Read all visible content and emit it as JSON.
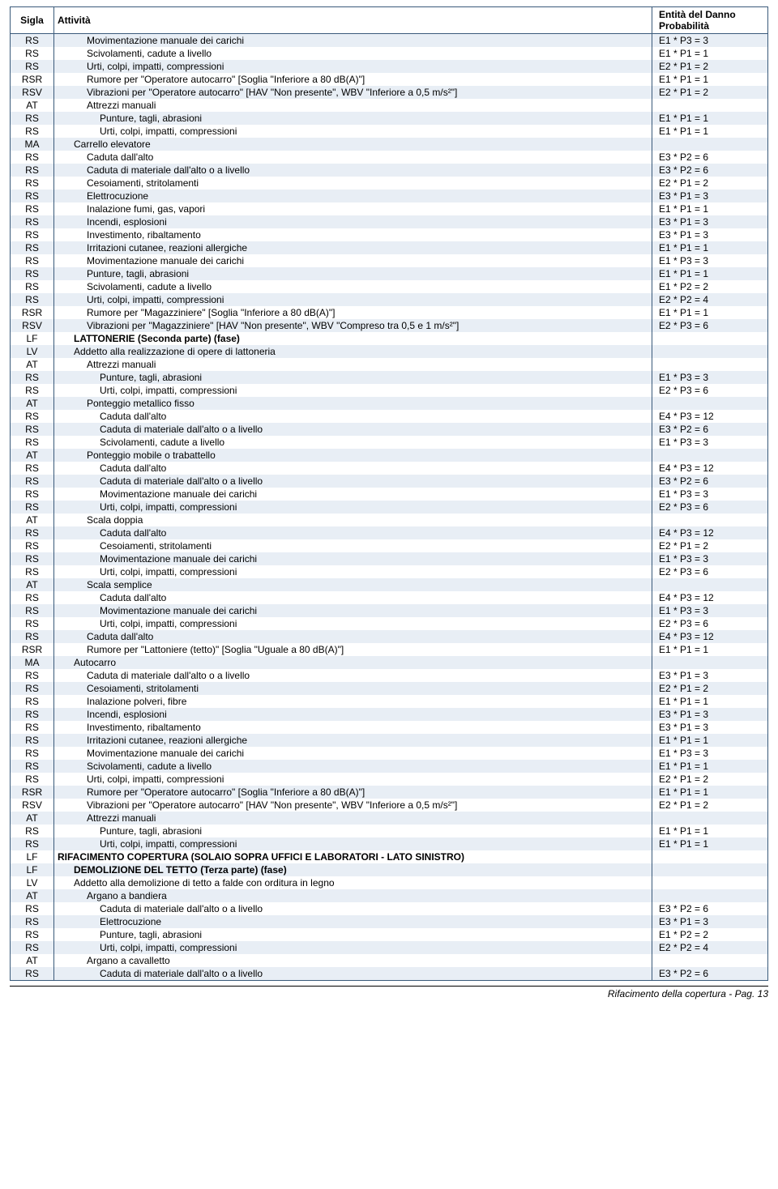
{
  "headers": {
    "sigla": "Sigla",
    "attivita": "Attività",
    "entita": "Entità del Danno\nProbabilità"
  },
  "footer": "Rifacimento della copertura - Pag. 13",
  "rows": [
    {
      "s": "RS",
      "a": "Movimentazione manuale dei carichi",
      "e": "E1 * P3 = 3",
      "i": 2
    },
    {
      "s": "RS",
      "a": "Scivolamenti, cadute a livello",
      "e": "E1 * P1 = 1",
      "i": 2
    },
    {
      "s": "RS",
      "a": "Urti, colpi, impatti, compressioni",
      "e": "E2 * P1 = 2",
      "i": 2
    },
    {
      "s": "RSR",
      "a": "Rumore per \"Operatore autocarro\" [Soglia \"Inferiore a 80 dB(A)\"]",
      "e": "E1 * P1 = 1",
      "i": 2
    },
    {
      "s": "RSV",
      "a": "Vibrazioni per \"Operatore autocarro\" [HAV \"Non presente\", WBV \"Inferiore a 0,5 m/s²\"]",
      "e": "E2 * P1 = 2",
      "i": 2
    },
    {
      "s": "AT",
      "a": "Attrezzi manuali",
      "e": "",
      "i": 2
    },
    {
      "s": "RS",
      "a": "Punture, tagli, abrasioni",
      "e": "E1 * P1 = 1",
      "i": 3
    },
    {
      "s": "RS",
      "a": "Urti, colpi, impatti, compressioni",
      "e": "E1 * P1 = 1",
      "i": 3
    },
    {
      "s": "MA",
      "a": "Carrello elevatore",
      "e": "",
      "i": 1
    },
    {
      "s": "RS",
      "a": "Caduta dall'alto",
      "e": "E3 * P2 = 6",
      "i": 2
    },
    {
      "s": "RS",
      "a": "Caduta di materiale dall'alto o a livello",
      "e": "E3 * P2 = 6",
      "i": 2
    },
    {
      "s": "RS",
      "a": "Cesoiamenti, stritolamenti",
      "e": "E2 * P1 = 2",
      "i": 2
    },
    {
      "s": "RS",
      "a": "Elettrocuzione",
      "e": "E3 * P1 = 3",
      "i": 2
    },
    {
      "s": "RS",
      "a": "Inalazione fumi, gas, vapori",
      "e": "E1 * P1 = 1",
      "i": 2
    },
    {
      "s": "RS",
      "a": "Incendi, esplosioni",
      "e": "E3 * P1 = 3",
      "i": 2
    },
    {
      "s": "RS",
      "a": "Investimento, ribaltamento",
      "e": "E3 * P1 = 3",
      "i": 2
    },
    {
      "s": "RS",
      "a": "Irritazioni cutanee, reazioni allergiche",
      "e": "E1 * P1 = 1",
      "i": 2
    },
    {
      "s": "RS",
      "a": "Movimentazione manuale dei carichi",
      "e": "E1 * P3 = 3",
      "i": 2
    },
    {
      "s": "RS",
      "a": "Punture, tagli, abrasioni",
      "e": "E1 * P1 = 1",
      "i": 2
    },
    {
      "s": "RS",
      "a": "Scivolamenti, cadute a livello",
      "e": "E1 * P2 = 2",
      "i": 2
    },
    {
      "s": "RS",
      "a": "Urti, colpi, impatti, compressioni",
      "e": "E2 * P2 = 4",
      "i": 2
    },
    {
      "s": "RSR",
      "a": "Rumore per \"Magazziniere\" [Soglia \"Inferiore a 80 dB(A)\"]",
      "e": "E1 * P1 = 1",
      "i": 2
    },
    {
      "s": "RSV",
      "a": "Vibrazioni per \"Magazziniere\" [HAV \"Non presente\", WBV \"Compreso tra 0,5 e 1 m/s²\"]",
      "e": "E2 * P3 = 6",
      "i": 2
    },
    {
      "s": "LF",
      "a": "LATTONERIE (Seconda parte) (fase)",
      "e": "",
      "i": 1,
      "b": true
    },
    {
      "s": "LV",
      "a": "Addetto alla realizzazione di opere di lattoneria",
      "e": "",
      "i": 1
    },
    {
      "s": "AT",
      "a": "Attrezzi manuali",
      "e": "",
      "i": 2
    },
    {
      "s": "RS",
      "a": "Punture, tagli, abrasioni",
      "e": "E1 * P3 = 3",
      "i": 3
    },
    {
      "s": "RS",
      "a": "Urti, colpi, impatti, compressioni",
      "e": "E2 * P3 = 6",
      "i": 3
    },
    {
      "s": "AT",
      "a": "Ponteggio metallico fisso",
      "e": "",
      "i": 2
    },
    {
      "s": "RS",
      "a": "Caduta dall'alto",
      "e": "E4 * P3 = 12",
      "i": 3
    },
    {
      "s": "RS",
      "a": "Caduta di materiale dall'alto o a livello",
      "e": "E3 * P2 = 6",
      "i": 3
    },
    {
      "s": "RS",
      "a": "Scivolamenti, cadute a livello",
      "e": "E1 * P3 = 3",
      "i": 3
    },
    {
      "s": "AT",
      "a": "Ponteggio mobile o trabattello",
      "e": "",
      "i": 2
    },
    {
      "s": "RS",
      "a": "Caduta dall'alto",
      "e": "E4 * P3 = 12",
      "i": 3
    },
    {
      "s": "RS",
      "a": "Caduta di materiale dall'alto o a livello",
      "e": "E3 * P2 = 6",
      "i": 3
    },
    {
      "s": "RS",
      "a": "Movimentazione manuale dei carichi",
      "e": "E1 * P3 = 3",
      "i": 3
    },
    {
      "s": "RS",
      "a": "Urti, colpi, impatti, compressioni",
      "e": "E2 * P3 = 6",
      "i": 3
    },
    {
      "s": "AT",
      "a": "Scala doppia",
      "e": "",
      "i": 2
    },
    {
      "s": "RS",
      "a": "Caduta dall'alto",
      "e": "E4 * P3 = 12",
      "i": 3
    },
    {
      "s": "RS",
      "a": "Cesoiamenti, stritolamenti",
      "e": "E2 * P1 = 2",
      "i": 3
    },
    {
      "s": "RS",
      "a": "Movimentazione manuale dei carichi",
      "e": "E1 * P3 = 3",
      "i": 3
    },
    {
      "s": "RS",
      "a": "Urti, colpi, impatti, compressioni",
      "e": "E2 * P3 = 6",
      "i": 3
    },
    {
      "s": "AT",
      "a": "Scala semplice",
      "e": "",
      "i": 2
    },
    {
      "s": "RS",
      "a": "Caduta dall'alto",
      "e": "E4 * P3 = 12",
      "i": 3
    },
    {
      "s": "RS",
      "a": "Movimentazione manuale dei carichi",
      "e": "E1 * P3 = 3",
      "i": 3
    },
    {
      "s": "RS",
      "a": "Urti, colpi, impatti, compressioni",
      "e": "E2 * P3 = 6",
      "i": 3
    },
    {
      "s": "RS",
      "a": "Caduta dall'alto",
      "e": "E4 * P3 = 12",
      "i": 2
    },
    {
      "s": "RSR",
      "a": "Rumore per \"Lattoniere (tetto)\" [Soglia \"Uguale a 80 dB(A)\"]",
      "e": "E1 * P1 = 1",
      "i": 2
    },
    {
      "s": "MA",
      "a": "Autocarro",
      "e": "",
      "i": 1
    },
    {
      "s": "RS",
      "a": "Caduta di materiale dall'alto o a livello",
      "e": "E3 * P1 = 3",
      "i": 2
    },
    {
      "s": "RS",
      "a": "Cesoiamenti, stritolamenti",
      "e": "E2 * P1 = 2",
      "i": 2
    },
    {
      "s": "RS",
      "a": "Inalazione polveri, fibre",
      "e": "E1 * P1 = 1",
      "i": 2
    },
    {
      "s": "RS",
      "a": "Incendi, esplosioni",
      "e": "E3 * P1 = 3",
      "i": 2
    },
    {
      "s": "RS",
      "a": "Investimento, ribaltamento",
      "e": "E3 * P1 = 3",
      "i": 2
    },
    {
      "s": "RS",
      "a": "Irritazioni cutanee, reazioni allergiche",
      "e": "E1 * P1 = 1",
      "i": 2
    },
    {
      "s": "RS",
      "a": "Movimentazione manuale dei carichi",
      "e": "E1 * P3 = 3",
      "i": 2
    },
    {
      "s": "RS",
      "a": "Scivolamenti, cadute a livello",
      "e": "E1 * P1 = 1",
      "i": 2
    },
    {
      "s": "RS",
      "a": "Urti, colpi, impatti, compressioni",
      "e": "E2 * P1 = 2",
      "i": 2
    },
    {
      "s": "RSR",
      "a": "Rumore per \"Operatore autocarro\" [Soglia \"Inferiore a 80 dB(A)\"]",
      "e": "E1 * P1 = 1",
      "i": 2
    },
    {
      "s": "RSV",
      "a": "Vibrazioni per \"Operatore autocarro\" [HAV \"Non presente\", WBV \"Inferiore a 0,5 m/s²\"]",
      "e": "E2 * P1 = 2",
      "i": 2
    },
    {
      "s": "AT",
      "a": "Attrezzi manuali",
      "e": "",
      "i": 2
    },
    {
      "s": "RS",
      "a": "Punture, tagli, abrasioni",
      "e": "E1 * P1 = 1",
      "i": 3
    },
    {
      "s": "RS",
      "a": "Urti, colpi, impatti, compressioni",
      "e": "E1 * P1 = 1",
      "i": 3
    },
    {
      "s": "LF",
      "a": "RIFACIMENTO COPERTURA (SOLAIO SOPRA UFFICI E LABORATORI - LATO SINISTRO)",
      "e": "",
      "i": 0,
      "b": true
    },
    {
      "s": "LF",
      "a": "DEMOLIZIONE DEL TETTO (Terza parte) (fase)",
      "e": "",
      "i": 1,
      "b": true
    },
    {
      "s": "LV",
      "a": "Addetto alla demolizione di tetto a falde con orditura in legno",
      "e": "",
      "i": 1
    },
    {
      "s": "AT",
      "a": "Argano a bandiera",
      "e": "",
      "i": 2
    },
    {
      "s": "RS",
      "a": "Caduta di materiale dall'alto o a livello",
      "e": "E3 * P2 = 6",
      "i": 3
    },
    {
      "s": "RS",
      "a": "Elettrocuzione",
      "e": "E3 * P1 = 3",
      "i": 3
    },
    {
      "s": "RS",
      "a": "Punture, tagli, abrasioni",
      "e": "E1 * P2 = 2",
      "i": 3
    },
    {
      "s": "RS",
      "a": "Urti, colpi, impatti, compressioni",
      "e": "E2 * P2 = 4",
      "i": 3
    },
    {
      "s": "AT",
      "a": "Argano a cavalletto",
      "e": "",
      "i": 2
    },
    {
      "s": "RS",
      "a": "Caduta di materiale dall'alto o a livello",
      "e": "E3 * P2 = 6",
      "i": 3
    }
  ]
}
